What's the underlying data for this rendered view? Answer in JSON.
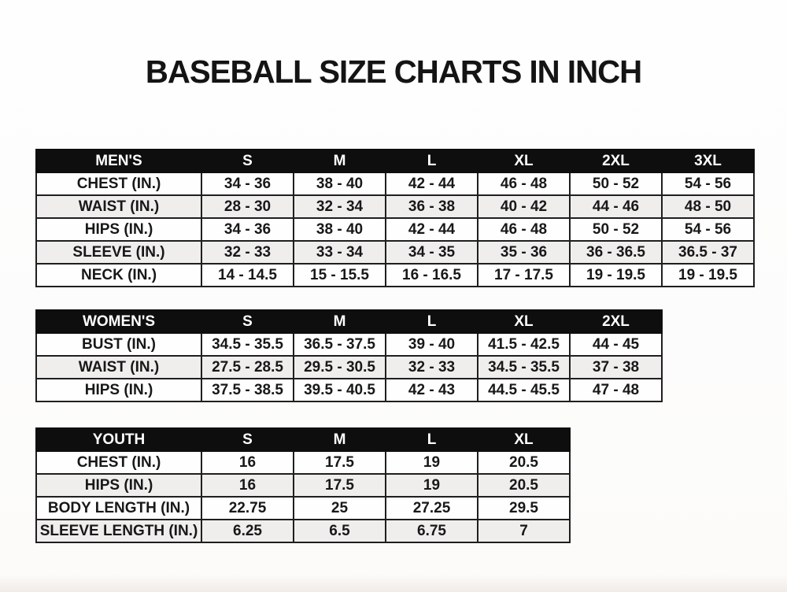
{
  "title": "BASEBALL SIZE CHARTS IN INCH",
  "colors": {
    "header_bg": "#0e0e0e",
    "header_text": "#ffffff",
    "row_bg": "#fefefe",
    "row_alt_bg": "#efeeed",
    "border": "#1f1f1f",
    "page_bg": "#fdfdfd"
  },
  "chart_data": [
    {
      "type": "table",
      "name": "mens",
      "title": "MEN'S",
      "header": [
        "MEN'S",
        "S",
        "M",
        "L",
        "XL",
        "2XL",
        "3XL"
      ],
      "rows": [
        [
          "CHEST (IN.)",
          "34 - 36",
          "38 - 40",
          "42 - 44",
          "46 - 48",
          "50 - 52",
          "54 - 56"
        ],
        [
          "WAIST (IN.)",
          "28 - 30",
          "32 - 34",
          "36 - 38",
          "40 - 42",
          "44 - 46",
          "48 - 50"
        ],
        [
          "HIPS (IN.)",
          "34 - 36",
          "38 - 40",
          "42 - 44",
          "46 - 48",
          "50 - 52",
          "54 - 56"
        ],
        [
          "SLEEVE (IN.)",
          "32 - 33",
          "33 - 34",
          "34 - 35",
          "35 - 36",
          "36 - 36.5",
          "36.5 - 37"
        ],
        [
          "NECK (IN.)",
          "14 - 14.5",
          "15 - 15.5",
          "16 - 16.5",
          "17 - 17.5",
          "19 - 19.5",
          "19 - 19.5"
        ]
      ]
    },
    {
      "type": "table",
      "name": "womens",
      "title": "WOMEN'S",
      "header": [
        "WOMEN'S",
        "S",
        "M",
        "L",
        "XL",
        "2XL"
      ],
      "rows": [
        [
          "BUST (IN.)",
          "34.5 - 35.5",
          "36.5 - 37.5",
          "39 - 40",
          "41.5 - 42.5",
          "44 - 45"
        ],
        [
          "WAIST (IN.)",
          "27.5 - 28.5",
          "29.5 - 30.5",
          "32 - 33",
          "34.5 - 35.5",
          "37 - 38"
        ],
        [
          "HIPS (IN.)",
          "37.5 - 38.5",
          "39.5 - 40.5",
          "42 - 43",
          "44.5 - 45.5",
          "47 - 48"
        ]
      ]
    },
    {
      "type": "table",
      "name": "youth",
      "title": "YOUTH",
      "header": [
        "YOUTH",
        "S",
        "M",
        "L",
        "XL"
      ],
      "rows": [
        [
          "CHEST (IN.)",
          "16",
          "17.5",
          "19",
          "20.5"
        ],
        [
          "HIPS (IN.)",
          "16",
          "17.5",
          "19",
          "20.5"
        ],
        [
          "BODY LENGTH (IN.)",
          "22.75",
          "25",
          "27.25",
          "29.5"
        ],
        [
          "SLEEVE LENGTH (IN.)",
          "6.25",
          "6.5",
          "6.75",
          "7"
        ]
      ]
    }
  ]
}
